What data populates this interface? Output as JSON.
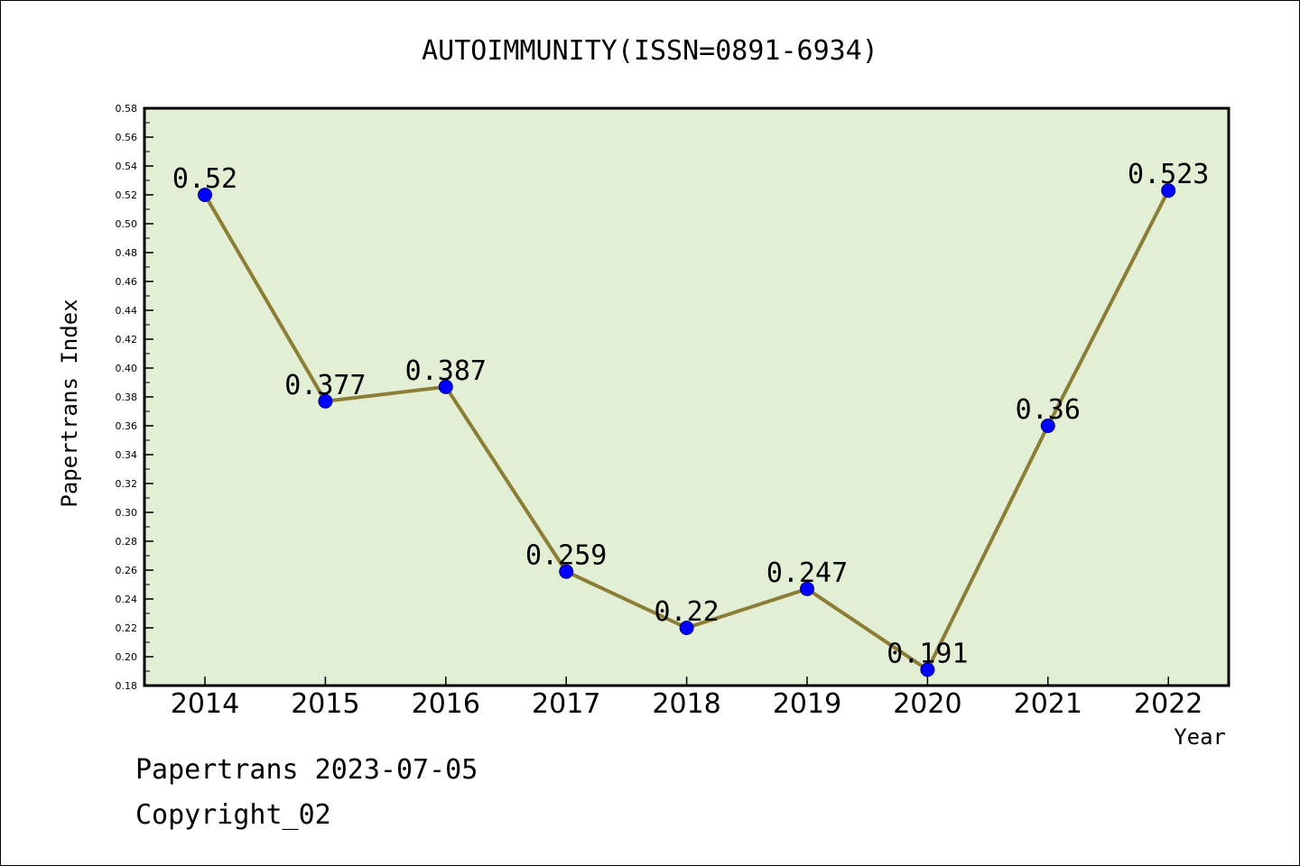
{
  "chart_data": {
    "type": "line",
    "title": "AUTOIMMUNITY(ISSN=0891-6934)",
    "xlabel": "Year",
    "ylabel": "Papertrans Index",
    "categories": [
      "2014",
      "2015",
      "2016",
      "2017",
      "2018",
      "2019",
      "2020",
      "2021",
      "2022"
    ],
    "series": [
      {
        "values": [
          0.52,
          0.377,
          0.387,
          0.259,
          0.22,
          0.247,
          0.191,
          0.36,
          0.523
        ],
        "labels": [
          "0.52",
          "0.377",
          "0.387",
          "0.259",
          "0.22",
          "0.247",
          "0.191",
          "0.36",
          "0.523"
        ]
      }
    ],
    "ylim": [
      0.18,
      0.58
    ],
    "yticks": [
      "0.18",
      "0.20",
      "0.22",
      "0.24",
      "0.26",
      "0.28",
      "0.30",
      "0.32",
      "0.34",
      "0.36",
      "0.38",
      "0.40",
      "0.42",
      "0.44",
      "0.46",
      "0.48",
      "0.50",
      "0.52",
      "0.54",
      "0.56",
      "0.58"
    ],
    "grid": false,
    "legend": "none",
    "colors": {
      "plot_background": "#e2efd5",
      "line": "#8b7d35",
      "marker": "#0000ff"
    }
  },
  "footer": {
    "line1": "Papertrans 2023-07-05",
    "line2": "Copyright_02"
  }
}
